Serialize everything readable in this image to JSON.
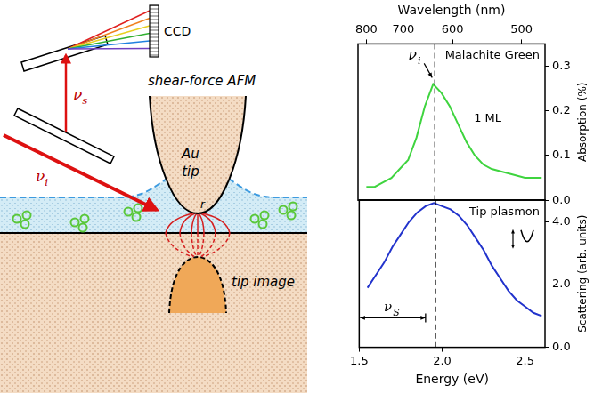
{
  "diagram": {
    "ccd": "CCD",
    "microscope": "shear-force AFM",
    "tip": "Au tip",
    "tip_image": "tip image",
    "tip_radius": "r",
    "scattered_beam": {
      "symbol": "ν",
      "sub": "s"
    },
    "incident_beam": {
      "symbol": "ν",
      "sub": "i"
    }
  },
  "chart_data": [
    {
      "type": "line",
      "title": "Malachite Green",
      "annotation": "1 ML",
      "x": [
        1.55,
        1.6,
        1.65,
        1.7,
        1.75,
        1.8,
        1.85,
        1.9,
        1.95,
        2.0,
        2.05,
        2.1,
        2.15,
        2.2,
        2.25,
        2.3,
        2.4,
        2.5,
        2.6
      ],
      "values": [
        0.03,
        0.03,
        0.04,
        0.05,
        0.07,
        0.09,
        0.14,
        0.21,
        0.26,
        0.24,
        0.21,
        0.17,
        0.13,
        0.1,
        0.08,
        0.07,
        0.06,
        0.05,
        0.05
      ],
      "color": "#3fd43f",
      "xlim": [
        1.5,
        2.62
      ],
      "ylim": [
        0,
        0.35
      ],
      "yticks": [
        {
          "value": 0,
          "label": "0.0"
        },
        {
          "value": 0.1,
          "label": "0.1"
        },
        {
          "value": 0.2,
          "label": "0.2"
        },
        {
          "value": 0.3,
          "label": "0.3"
        }
      ],
      "y_label": "Absorption (%)",
      "x2_label": "Wavelength (nm)",
      "x2_ticks": [
        800,
        700,
        600,
        500
      ],
      "marker_line": {
        "x": 1.96,
        "label": {
          "symbol": "ν",
          "sub": "i"
        }
      },
      "grid": false
    },
    {
      "type": "line",
      "title": "Tip plasmon",
      "x": [
        1.55,
        1.6,
        1.65,
        1.7,
        1.75,
        1.8,
        1.85,
        1.9,
        1.95,
        2.0,
        2.05,
        2.1,
        2.15,
        2.2,
        2.25,
        2.3,
        2.35,
        2.4,
        2.45,
        2.5,
        2.55,
        2.6
      ],
      "values": [
        1.9,
        2.3,
        2.7,
        3.2,
        3.6,
        4.0,
        4.3,
        4.5,
        4.6,
        4.5,
        4.4,
        4.2,
        3.9,
        3.5,
        3.1,
        2.6,
        2.2,
        1.8,
        1.5,
        1.3,
        1.1,
        1.0
      ],
      "color": "#2233cc",
      "xlim": [
        1.5,
        2.62
      ],
      "xticks": [
        {
          "value": 1.5,
          "label": "1.5"
        },
        {
          "value": 2,
          "label": "2.0"
        },
        {
          "value": 2.5,
          "label": "2.5"
        }
      ],
      "x_label": "Energy (eV)",
      "ylim": [
        0,
        4.7
      ],
      "yticks": [
        {
          "value": 0,
          "label": "0.0"
        },
        {
          "value": 2,
          "label": "2.0"
        },
        {
          "value": 4,
          "label": "4.0"
        }
      ],
      "y_label": "Scattering (arb. units)",
      "marker_line": {
        "x": 1.96
      },
      "arrow": {
        "x": [
          1.5,
          1.9
        ],
        "label": {
          "symbol": "ν",
          "sub": "S"
        }
      },
      "grid": false
    }
  ]
}
